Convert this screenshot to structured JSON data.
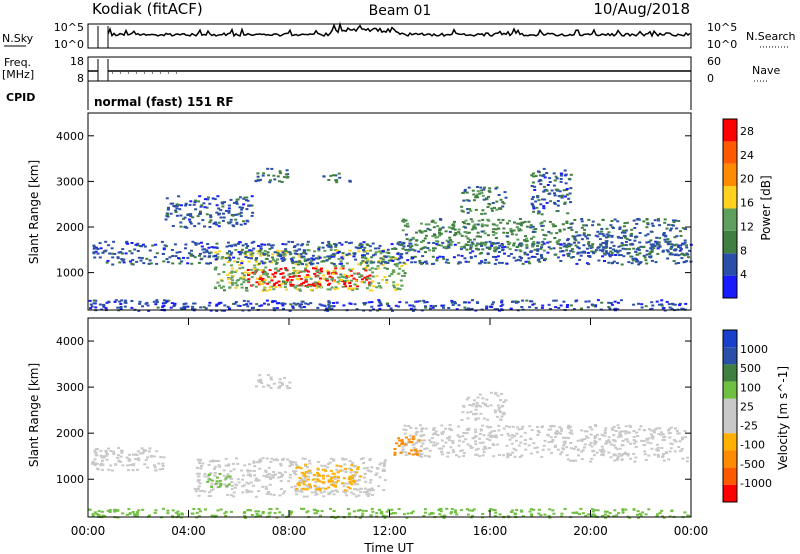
{
  "header": {
    "station": "Kodiak (fitACF)",
    "beam": "Beam 01",
    "date": "10/Aug/2018"
  },
  "summary_panels": {
    "nsky_label": "N.Sky",
    "nsky_ticks": [
      "10^5",
      "10^0"
    ],
    "nsearch_label": "N.Search",
    "nsearch_ticks": [
      "10^5",
      "10^0"
    ],
    "freq_label": "Freq.",
    "freq_unit": "[MHz]",
    "freq_ticks": [
      "18",
      "8"
    ],
    "nave_label": "Nave",
    "nave_ticks": [
      "60",
      "0"
    ],
    "cpid_label": "CPID",
    "cpid_value": "normal (fast) 151 RF"
  },
  "colors": {
    "power_scale": [
      "#1a1aff",
      "#2a4fa8",
      "#3f7f3f",
      "#5fa05f",
      "#ffd21f",
      "#ff8c00",
      "#ff5a00",
      "#ff0000"
    ],
    "velocity_scale": [
      "#ff0000",
      "#ff5a00",
      "#ff8c00",
      "#ffb000",
      "#c8c8c8",
      "#c8c8c8",
      "#6fc040",
      "#3f7f3f",
      "#2a4fa8",
      "#1a3fcc"
    ]
  },
  "chart_data": [
    {
      "type": "heatmap",
      "title": "",
      "xlabel": "",
      "ylabel": "Slant Range [km]",
      "x_range": [
        "00:00",
        "24:00"
      ],
      "y_range": [
        180,
        4500
      ],
      "yticks": [
        "1000",
        "2000",
        "3000",
        "4000"
      ],
      "xticks": [
        "00:00",
        "04:00",
        "08:00",
        "12:00",
        "16:00",
        "20:00",
        "00:00"
      ],
      "colorbar": {
        "label": "Power [dB]",
        "ticks": [
          "4",
          "8",
          "12",
          "16",
          "20",
          "24",
          "28"
        ],
        "range": [
          0,
          30
        ]
      },
      "regions": [
        {
          "t0": 6.3,
          "t1": 11.2,
          "r0": 720,
          "r1": 1120,
          "value": 30
        },
        {
          "t0": 5.0,
          "t1": 12.6,
          "r0": 620,
          "r1": 1520,
          "value": 14
        },
        {
          "t0": 0.1,
          "t1": 24.0,
          "r0": 1200,
          "r1": 1700,
          "value": 6
        },
        {
          "t0": 12.4,
          "t1": 19.0,
          "r0": 1500,
          "r1": 2200,
          "value": 10
        },
        {
          "t0": 19.0,
          "t1": 23.8,
          "r0": 1400,
          "r1": 2200,
          "value": 7
        },
        {
          "t0": 14.8,
          "t1": 16.6,
          "r0": 2300,
          "r1": 2900,
          "value": 9
        },
        {
          "t0": 6.6,
          "t1": 8.0,
          "r0": 3000,
          "r1": 3300,
          "value": 8
        },
        {
          "t0": 9.3,
          "t1": 10.4,
          "r0": 3000,
          "r1": 3200,
          "value": 7
        },
        {
          "t0": 17.6,
          "t1": 19.2,
          "r0": 2300,
          "r1": 3300,
          "value": 6
        },
        {
          "t0": 3.0,
          "t1": 6.5,
          "r0": 2000,
          "r1": 2700,
          "value": 6
        },
        {
          "t0": 0.0,
          "t1": 24.0,
          "r0": 180,
          "r1": 420,
          "value": 5
        }
      ]
    },
    {
      "type": "heatmap",
      "title": "",
      "xlabel": "Time UT",
      "ylabel": "Slant Range [km]",
      "x_range": [
        "00:00",
        "24:00"
      ],
      "y_range": [
        180,
        4500
      ],
      "yticks": [
        "1000",
        "2000",
        "3000",
        "4000"
      ],
      "xticks": [
        "00:00",
        "04:00",
        "08:00",
        "12:00",
        "16:00",
        "20:00",
        "00:00"
      ],
      "colorbar": {
        "label": "Velocity [m s^-1]",
        "ticks": [
          "1000",
          "500",
          "100",
          "25",
          "-25",
          "-100",
          "-500",
          "-1000"
        ],
        "range": [
          -1000,
          1000
        ]
      },
      "regions": [
        {
          "t0": 4.2,
          "t1": 11.8,
          "r0": 640,
          "r1": 1480,
          "value": 0
        },
        {
          "t0": 8.2,
          "t1": 10.9,
          "r0": 780,
          "r1": 1350,
          "value": -60
        },
        {
          "t0": 4.7,
          "t1": 5.6,
          "r0": 850,
          "r1": 1200,
          "value": 80
        },
        {
          "t0": 0.1,
          "t1": 3.0,
          "r0": 1200,
          "r1": 1700,
          "value": 0
        },
        {
          "t0": 12.4,
          "t1": 19.0,
          "r0": 1500,
          "r1": 2200,
          "value": 0
        },
        {
          "t0": 19.0,
          "t1": 23.8,
          "r0": 1400,
          "r1": 2200,
          "value": 0
        },
        {
          "t0": 12.1,
          "t1": 13.2,
          "r0": 1550,
          "r1": 1950,
          "value": -200
        },
        {
          "t0": 14.8,
          "t1": 16.6,
          "r0": 2300,
          "r1": 2900,
          "value": 0
        },
        {
          "t0": 6.6,
          "t1": 8.0,
          "r0": 3000,
          "r1": 3300,
          "value": 0
        },
        {
          "t0": 0.0,
          "t1": 24.0,
          "r0": 180,
          "r1": 380,
          "value": 60
        }
      ]
    }
  ]
}
